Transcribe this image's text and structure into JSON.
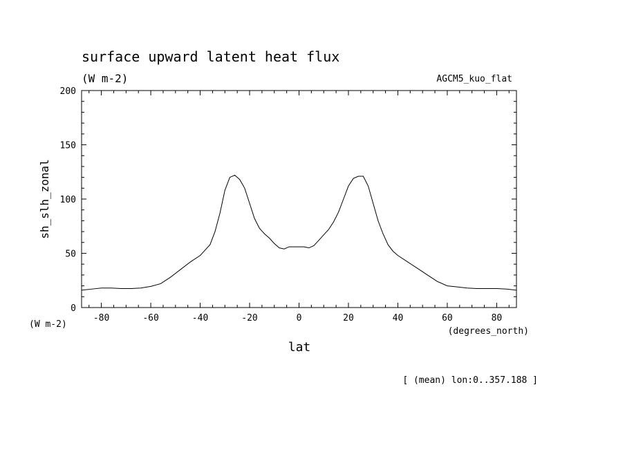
{
  "chart_data": {
    "type": "line",
    "title": "surface upward latent heat flux",
    "units_label": "(W m-2)",
    "model_label": "AGCM5_kuo_flat",
    "xlabel": "lat",
    "x_units": "(degrees_north)",
    "ylabel": "sh_slh_zonal",
    "y_units": "(W m-2)",
    "footnote": "[ (mean) lon:0..357.188 ]",
    "xlim": [
      -88,
      88
    ],
    "ylim": [
      0,
      200
    ],
    "x_ticks": [
      -80,
      -60,
      -40,
      -20,
      0,
      20,
      40,
      60,
      80
    ],
    "y_ticks": [
      0,
      50,
      100,
      150,
      200
    ],
    "x_tick_labels": [
      "-80",
      "-60",
      "-40",
      "-20",
      "0",
      "20",
      "40",
      "60",
      "80"
    ],
    "y_tick_labels": [
      "0",
      "50",
      "100",
      "150",
      "200"
    ],
    "line_color": "#000000",
    "series": [
      {
        "x": [
          -88,
          -84,
          -80,
          -76,
          -72,
          -68,
          -64,
          -60,
          -56,
          -52,
          -48,
          -44,
          -40,
          -38,
          -36,
          -34,
          -32,
          -30,
          -28,
          -26,
          -24,
          -22,
          -20,
          -18,
          -16,
          -14,
          -12,
          -10,
          -8,
          -6,
          -4,
          -2,
          0,
          2,
          4,
          6,
          8,
          10,
          12,
          14,
          16,
          18,
          20,
          22,
          24,
          26,
          28,
          30,
          32,
          34,
          36,
          38,
          40,
          44,
          48,
          52,
          56,
          60,
          64,
          68,
          72,
          76,
          80,
          84,
          88
        ],
        "values": [
          16,
          17,
          18,
          18,
          17.5,
          17.5,
          18,
          19.5,
          22,
          28,
          35,
          42,
          48,
          53,
          58,
          70,
          87,
          108,
          120,
          122,
          118,
          110,
          96,
          82,
          73,
          68,
          64,
          59,
          55,
          54,
          56,
          56,
          56,
          56,
          55,
          57,
          62,
          67,
          72,
          79,
          88,
          100,
          112,
          119,
          121,
          121,
          112,
          96,
          80,
          68,
          58,
          52,
          48,
          42,
          36,
          30,
          24,
          20,
          19,
          18,
          17.5,
          17.5,
          17.5,
          17,
          16
        ]
      }
    ]
  }
}
